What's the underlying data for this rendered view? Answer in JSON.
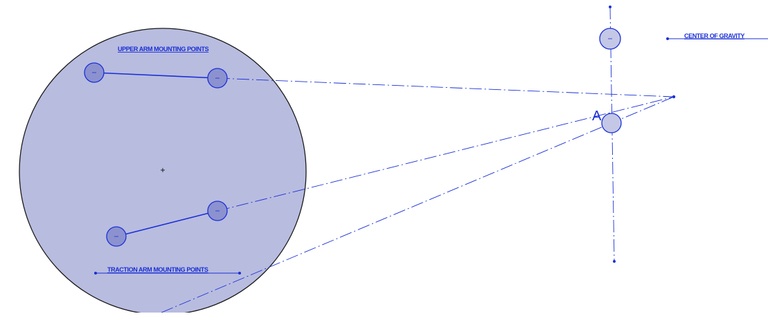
{
  "labels": {
    "upper_arm": "UPPER ARM MOUNTING POINTS",
    "traction_arm": "TRACTION ARM MOUNTING POINTS",
    "center_of_gravity": "CENTER OF GRAVITY",
    "point_a": "A"
  },
  "colors": {
    "line": "#1a2fd6",
    "disc_fill": "#b8bcdf",
    "disc_stroke": "#1a1a1a",
    "pivot_fill": "#8c92cf",
    "background": "#ffffff"
  }
}
